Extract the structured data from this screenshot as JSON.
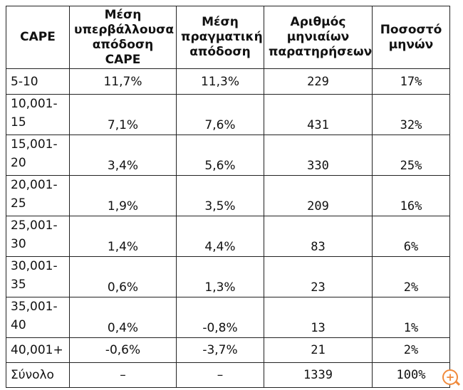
{
  "table": {
    "headers": [
      "CAPE",
      "Μέση υπερβάλλουσα απόδοση CAPE",
      "Μέση πραγματική απόδοση",
      "Αριθμός μηνιαίων παρατηρήσεων",
      "Ποσοστό μηνών"
    ],
    "rows": [
      {
        "cape": "5-10",
        "excess": "11,7%",
        "real": "11,3%",
        "obs": "229",
        "pct": "17%"
      },
      {
        "cape": "10,001-15",
        "excess": "7,1%",
        "real": "7,6%",
        "obs": "431",
        "pct": "32%"
      },
      {
        "cape": "15,001-20",
        "excess": "3,4%",
        "real": "5,6%",
        "obs": "330",
        "pct": "25%"
      },
      {
        "cape": "20,001-25",
        "excess": "1,9%",
        "real": "3,5%",
        "obs": "209",
        "pct": "16%"
      },
      {
        "cape": "25,001-30",
        "excess": "1,4%",
        "real": "4,4%",
        "obs": "83",
        "pct": "6%"
      },
      {
        "cape": "30,001-35",
        "excess": "0,6%",
        "real": "1,3%",
        "obs": "23",
        "pct": "2%"
      },
      {
        "cape": "35,001-40",
        "excess": "0,4%",
        "real": "-0,8%",
        "obs": "13",
        "pct": "1%"
      },
      {
        "cape": "40,001+",
        "excess": "-0,6%",
        "real": "-3,7%",
        "obs": "21",
        "pct": "2%"
      },
      {
        "cape": "Σύνολο",
        "excess": "–",
        "real": "–",
        "obs": "1339",
        "pct": "100%"
      }
    ]
  },
  "zoom": {
    "label": "+",
    "icon": "zoom-in-icon",
    "color": "#f08a3c"
  }
}
